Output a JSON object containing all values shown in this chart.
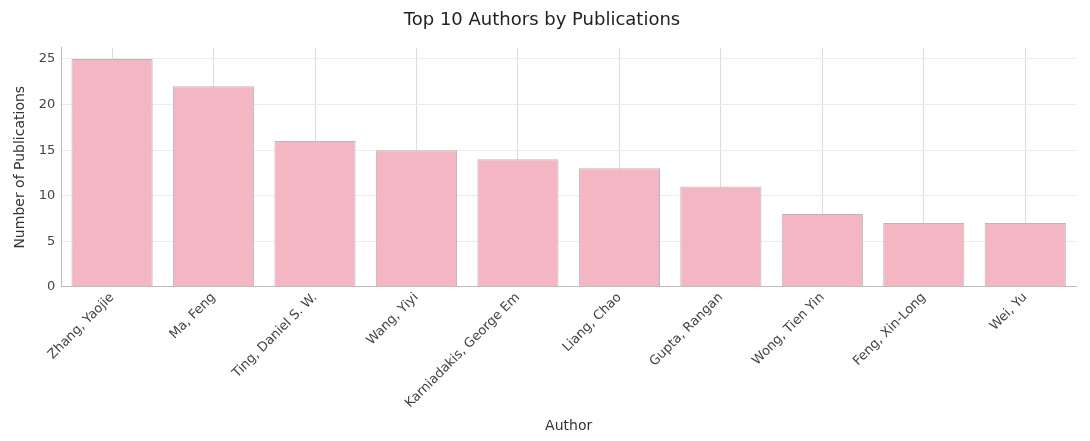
{
  "chart_data": {
    "type": "bar",
    "title": "Top 10 Authors by Publications",
    "xlabel": "Author",
    "ylabel": "Number of Publications",
    "categories": [
      "Zhang, Yaojie",
      "Ma, Feng",
      "Ting, Daniel S. W.",
      "Wang, Yiyi",
      "Karniadakis, George Em",
      "Liang, Chao",
      "Gupta, Rangan",
      "Wong, Tien Yin",
      "Feng, Xin-Long",
      "Wei, Yu"
    ],
    "values": [
      25,
      22,
      16,
      15,
      14,
      13,
      11,
      8,
      7,
      7
    ],
    "color": "#f4b6c3",
    "ylim": [
      0,
      26.25
    ],
    "yticks": [
      0,
      5,
      10,
      15,
      20,
      25
    ],
    "grid": true
  }
}
